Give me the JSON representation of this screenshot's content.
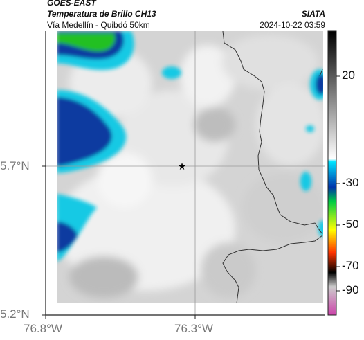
{
  "header": {
    "satellite": "GOES-EAST",
    "product": "Temperatura de Brillo CH13",
    "region": "Vía Medellín - Quibdó 50km",
    "agency": "SIATA",
    "datetime": "2024-10-22 03:59"
  },
  "map": {
    "x_ticks": [
      "76.8°W",
      "76.3°W"
    ],
    "y_ticks": [
      "5.7°N",
      "5.2°N"
    ],
    "marker_icon": "star-icon",
    "colors": {
      "background_gray": "#cfcfcf",
      "warm_white": "#f2f2f2",
      "cold_cyan": "#12c8e6",
      "cold_blue": "#0a3aa8",
      "very_cold_green": "#22c422",
      "border_line": "#333333"
    }
  },
  "colorbar": {
    "ticks": [
      "20",
      "-30",
      "-50",
      "-70",
      "-90"
    ],
    "stops": [
      {
        "color": "#000000",
        "at": 0.0
      },
      {
        "color": "#ffffff",
        "at": 0.45
      },
      {
        "color": "#00e5ff",
        "at": 0.46
      },
      {
        "color": "#0033aa",
        "at": 0.55
      },
      {
        "color": "#00cc44",
        "at": 0.6
      },
      {
        "color": "#ffff00",
        "at": 0.7
      },
      {
        "color": "#ff3300",
        "at": 0.78
      },
      {
        "color": "#000000",
        "at": 0.85
      },
      {
        "color": "#cccccc",
        "at": 0.9
      },
      {
        "color": "#cc44aa",
        "at": 1.0
      }
    ]
  }
}
